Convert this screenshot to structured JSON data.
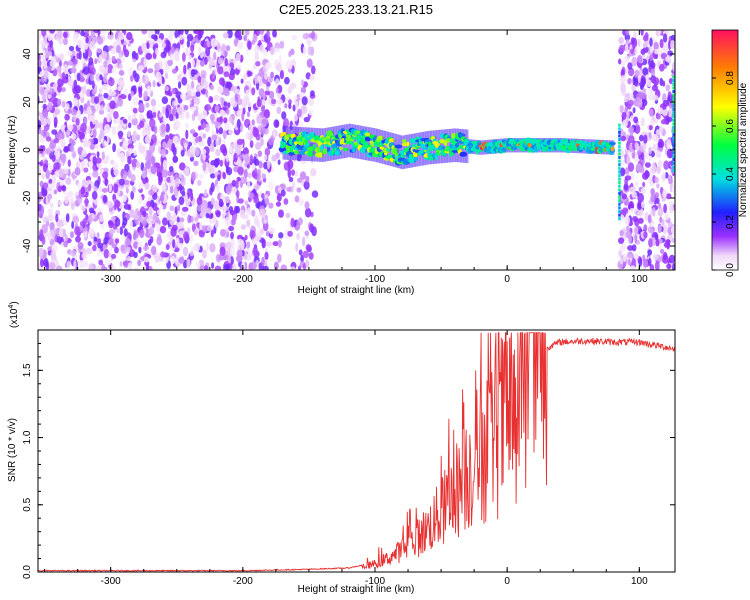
{
  "title": "C2E5.2025.233.13.21.R15",
  "chart_data": [
    {
      "type": "heatmap",
      "xlabel": "Height of straight line (km)",
      "ylabel": "Frequency (Hz)",
      "xlim": [
        -355,
        127
      ],
      "ylim": [
        -50,
        50
      ],
      "xticks": [
        -300,
        -200,
        -100,
        0,
        100
      ],
      "yticks": [
        -40,
        -20,
        0,
        20,
        40
      ],
      "colorbar": {
        "label": "Normalized spectral amplitude",
        "range": [
          0,
          1
        ],
        "ticks": [
          "0.0",
          "0.2",
          "0.4",
          "0.6",
          "0.8"
        ],
        "tick_values": [
          0.0,
          0.2,
          0.4,
          0.6,
          0.8
        ]
      },
      "regions": [
        {
          "x": [
            -355,
            -145
          ],
          "y": [
            -50,
            50
          ],
          "amplitude": [
            0.0,
            0.15
          ],
          "description_kind": "noise"
        },
        {
          "x": [
            -170,
            80
          ],
          "y": [
            -8,
            8
          ],
          "amplitude": [
            0.2,
            1.0
          ],
          "description_kind": "signal"
        },
        {
          "x": [
            85,
            127
          ],
          "y": [
            -50,
            50
          ],
          "amplitude": [
            0.0,
            0.15
          ],
          "description_kind": "noise"
        }
      ],
      "signal_center": [
        {
          "x": -170,
          "y": 3
        },
        {
          "x": -140,
          "y": 2
        },
        {
          "x": -120,
          "y": 4
        },
        {
          "x": -100,
          "y": 2
        },
        {
          "x": -80,
          "y": -1
        },
        {
          "x": -60,
          "y": 1
        },
        {
          "x": -40,
          "y": 2
        },
        {
          "x": -20,
          "y": 1
        },
        {
          "x": 0,
          "y": 2
        },
        {
          "x": 40,
          "y": 2
        },
        {
          "x": 80,
          "y": 1
        }
      ]
    },
    {
      "type": "line",
      "xlabel": "Height of straight line (km)",
      "ylabel": "SNR (10 * v/v)",
      "yscale_label": "(x10",
      "yscale_exp": "4",
      "yscale_close": ")",
      "xlim": [
        -355,
        127
      ],
      "ylim": [
        0,
        1.8
      ],
      "xticks": [
        -300,
        -200,
        -100,
        0,
        100
      ],
      "yticks": [
        "0.0",
        "0.5",
        "1.0",
        "1.5"
      ],
      "ytick_values": [
        0.0,
        0.5,
        1.0,
        1.5
      ],
      "series": [
        {
          "color": "#e83030",
          "x": [
            -355,
            -300,
            -250,
            -200,
            -150,
            -120,
            -110,
            -100,
            -90,
            -80,
            -70,
            -60,
            -50,
            -40,
            -30,
            -20,
            -10,
            0,
            10,
            20,
            30,
            40,
            60,
            80,
            100,
            110,
            127
          ],
          "y": [
            0.01,
            0.01,
            0.01,
            0.01,
            0.02,
            0.03,
            0.05,
            0.08,
            0.13,
            0.2,
            0.28,
            0.38,
            0.5,
            0.65,
            0.8,
            0.95,
            1.05,
            1.15,
            1.4,
            1.55,
            1.67,
            1.71,
            1.72,
            1.71,
            1.71,
            1.69,
            1.66
          ]
        }
      ]
    }
  ]
}
